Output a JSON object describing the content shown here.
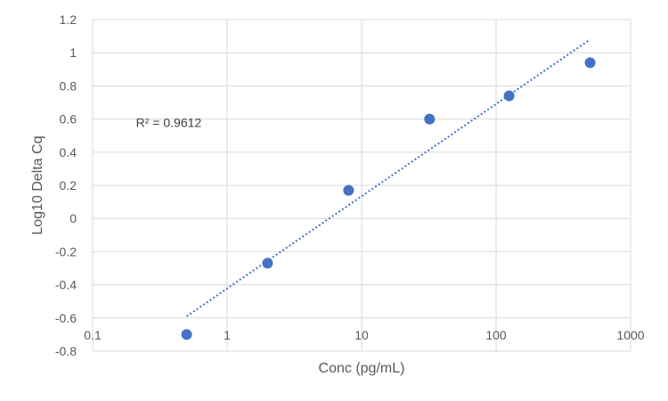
{
  "chart_data": {
    "type": "scatter",
    "title": "",
    "xlabel": "Conc (pg/mL)",
    "ylabel": "Log10 Delta Cq",
    "x_scale": "log",
    "xlim": [
      0.1,
      1000
    ],
    "ylim": [
      -0.8,
      1.2
    ],
    "x_ticks": [
      0.1,
      1,
      10,
      100,
      1000
    ],
    "x_tick_labels": [
      "0.1",
      "1",
      "10",
      "100",
      "1000"
    ],
    "y_ticks": [
      -0.8,
      -0.6,
      -0.4,
      -0.2,
      0,
      0.2,
      0.4,
      0.6,
      0.8,
      1,
      1.2
    ],
    "y_tick_labels": [
      "-0.8",
      "-0.6",
      "-0.4",
      "-0.2",
      "0",
      "0.2",
      "0.4",
      "0.6",
      "0.8",
      "1",
      "1.2"
    ],
    "grid": true,
    "series": [
      {
        "x": [
          0.5,
          2,
          8,
          32,
          125,
          500
        ],
        "y": [
          -0.7,
          -0.27,
          0.17,
          0.6,
          0.74,
          0.94
        ],
        "color": "#4472C4"
      }
    ],
    "trendline": {
      "type": "log-linear",
      "x_start": 0.5,
      "x_end": 500,
      "y_start": -0.59,
      "y_end": 1.08,
      "style": "dotted",
      "color": "#4472C4"
    },
    "annotations": [
      {
        "text": "R² = 0.9612",
        "x": 0.21,
        "y": 0.58
      }
    ]
  }
}
